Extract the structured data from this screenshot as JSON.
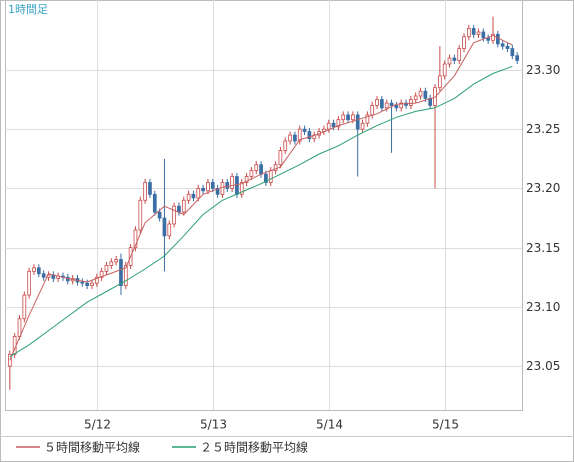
{
  "chart_data": {
    "type": "candlestick",
    "title": "1時間足",
    "xlim": [
      -1,
      106
    ],
    "ylim": [
      23.013,
      23.359
    ],
    "xticks": [
      {
        "value": 18,
        "label": "5/12"
      },
      {
        "value": 42,
        "label": "5/13"
      },
      {
        "value": 66,
        "label": "5/14"
      },
      {
        "value": 90,
        "label": "5/15"
      }
    ],
    "yticks": [
      23.05,
      {
        "value": 23.1,
        "label": "23.10"
      },
      23.15,
      {
        "value": 23.2,
        "label": "23.20"
      },
      23.25,
      {
        "value": 23.3,
        "label": "23.30"
      }
    ],
    "grid": true,
    "up_color": "#c84a4a",
    "down_color": "#3a6ea5",
    "ohlc": [
      [
        23.05,
        23.063,
        23.03,
        23.06
      ],
      [
        23.06,
        23.078,
        23.057,
        23.075
      ],
      [
        23.075,
        23.093,
        23.072,
        23.09
      ],
      [
        23.09,
        23.113,
        23.087,
        23.11
      ],
      [
        23.11,
        23.133,
        23.107,
        23.13
      ],
      [
        23.13,
        23.136,
        23.127,
        23.133
      ],
      [
        23.133,
        23.136,
        23.125,
        23.128
      ],
      [
        23.128,
        23.131,
        23.122,
        23.125
      ],
      [
        23.125,
        23.13,
        23.122,
        23.127
      ],
      [
        23.127,
        23.13,
        23.121,
        23.124
      ],
      [
        23.124,
        23.129,
        23.121,
        23.126
      ],
      [
        23.126,
        23.129,
        23.122,
        23.125
      ],
      [
        23.125,
        23.128,
        23.119,
        23.122
      ],
      [
        23.122,
        23.127,
        23.119,
        23.124
      ],
      [
        23.124,
        23.127,
        23.118,
        23.121
      ],
      [
        23.121,
        23.124,
        23.117,
        23.12
      ],
      [
        23.12,
        23.123,
        23.115,
        23.118
      ],
      [
        23.118,
        23.123,
        23.115,
        23.12
      ],
      [
        23.12,
        23.128,
        23.117,
        23.125
      ],
      [
        23.125,
        23.133,
        23.122,
        23.13
      ],
      [
        23.13,
        23.138,
        23.127,
        23.135
      ],
      [
        23.135,
        23.141,
        23.132,
        23.138
      ],
      [
        23.138,
        23.143,
        23.135,
        23.14
      ],
      [
        23.14,
        23.145,
        23.11,
        23.118
      ],
      [
        23.118,
        23.138,
        23.115,
        23.135
      ],
      [
        23.135,
        23.153,
        23.132,
        23.15
      ],
      [
        23.15,
        23.168,
        23.147,
        23.165
      ],
      [
        23.165,
        23.193,
        23.162,
        23.19
      ],
      [
        23.19,
        23.208,
        23.187,
        23.205
      ],
      [
        23.205,
        23.208,
        23.192,
        23.195
      ],
      [
        23.195,
        23.198,
        23.177,
        23.18
      ],
      [
        23.18,
        23.183,
        23.172,
        23.175
      ],
      [
        23.175,
        23.225,
        23.13,
        23.16
      ],
      [
        23.16,
        23.173,
        23.157,
        23.17
      ],
      [
        23.17,
        23.188,
        23.167,
        23.185
      ],
      [
        23.185,
        23.188,
        23.177,
        23.18
      ],
      [
        23.18,
        23.193,
        23.177,
        23.19
      ],
      [
        23.19,
        23.198,
        23.187,
        23.195
      ],
      [
        23.195,
        23.198,
        23.189,
        23.192
      ],
      [
        23.192,
        23.203,
        23.189,
        23.2
      ],
      [
        23.2,
        23.203,
        23.195,
        23.198
      ],
      [
        23.198,
        23.208,
        23.195,
        23.205
      ],
      [
        23.205,
        23.208,
        23.197,
        23.2
      ],
      [
        23.2,
        23.203,
        23.192,
        23.195
      ],
      [
        23.195,
        23.208,
        23.192,
        23.205
      ],
      [
        23.205,
        23.208,
        23.197,
        23.2
      ],
      [
        23.2,
        23.213,
        23.197,
        23.21
      ],
      [
        23.21,
        23.213,
        23.192,
        23.195
      ],
      [
        23.195,
        23.208,
        23.192,
        23.205
      ],
      [
        23.205,
        23.213,
        23.202,
        23.21
      ],
      [
        23.21,
        23.218,
        23.207,
        23.215
      ],
      [
        23.215,
        23.223,
        23.212,
        23.22
      ],
      [
        23.22,
        23.223,
        23.209,
        23.212
      ],
      [
        23.212,
        23.215,
        23.202,
        23.205
      ],
      [
        23.205,
        23.218,
        23.202,
        23.215
      ],
      [
        23.215,
        23.223,
        23.212,
        23.22
      ],
      [
        23.22,
        23.235,
        23.217,
        23.232
      ],
      [
        23.232,
        23.243,
        23.229,
        23.24
      ],
      [
        23.24,
        23.248,
        23.237,
        23.245
      ],
      [
        23.245,
        23.248,
        23.237,
        23.24
      ],
      [
        23.24,
        23.253,
        23.237,
        23.25
      ],
      [
        23.25,
        23.253,
        23.245,
        23.248
      ],
      [
        23.248,
        23.251,
        23.239,
        23.242
      ],
      [
        23.242,
        23.248,
        23.239,
        23.245
      ],
      [
        23.245,
        23.251,
        23.242,
        23.248
      ],
      [
        23.248,
        23.253,
        23.245,
        23.25
      ],
      [
        23.25,
        23.258,
        23.247,
        23.255
      ],
      [
        23.255,
        23.258,
        23.249,
        23.252
      ],
      [
        23.252,
        23.261,
        23.249,
        23.258
      ],
      [
        23.258,
        23.265,
        23.255,
        23.262
      ],
      [
        23.262,
        23.265,
        23.255,
        23.258
      ],
      [
        23.258,
        23.265,
        23.255,
        23.262
      ],
      [
        23.262,
        23.265,
        23.21,
        23.25
      ],
      [
        23.25,
        23.258,
        23.247,
        23.255
      ],
      [
        23.255,
        23.265,
        23.252,
        23.262
      ],
      [
        23.262,
        23.273,
        23.259,
        23.27
      ],
      [
        23.27,
        23.278,
        23.267,
        23.275
      ],
      [
        23.275,
        23.278,
        23.265,
        23.268
      ],
      [
        23.268,
        23.275,
        23.265,
        23.272
      ],
      [
        23.272,
        23.275,
        23.23,
        23.27
      ],
      [
        23.27,
        23.273,
        23.265,
        23.268
      ],
      [
        23.268,
        23.275,
        23.265,
        23.272
      ],
      [
        23.272,
        23.275,
        23.267,
        23.27
      ],
      [
        23.27,
        23.278,
        23.267,
        23.275
      ],
      [
        23.275,
        23.281,
        23.272,
        23.278
      ],
      [
        23.278,
        23.285,
        23.275,
        23.282
      ],
      [
        23.282,
        23.285,
        23.273,
        23.276
      ],
      [
        23.276,
        23.279,
        23.267,
        23.27
      ],
      [
        23.27,
        23.288,
        23.2,
        23.285
      ],
      [
        23.285,
        23.32,
        23.282,
        23.295
      ],
      [
        23.295,
        23.308,
        23.292,
        23.305
      ],
      [
        23.305,
        23.313,
        23.302,
        23.31
      ],
      [
        23.31,
        23.313,
        23.305,
        23.308
      ],
      [
        23.308,
        23.321,
        23.305,
        23.318
      ],
      [
        23.318,
        23.331,
        23.315,
        23.328
      ],
      [
        23.328,
        23.338,
        23.325,
        23.335
      ],
      [
        23.335,
        23.338,
        23.327,
        23.33
      ],
      [
        23.33,
        23.335,
        23.327,
        23.332
      ],
      [
        23.332,
        23.335,
        23.324,
        23.327
      ],
      [
        23.327,
        23.33,
        23.322,
        23.325
      ],
      [
        23.325,
        23.345,
        23.322,
        23.33
      ],
      [
        23.33,
        23.333,
        23.319,
        23.322
      ],
      [
        23.322,
        23.325,
        23.317,
        23.32
      ],
      [
        23.32,
        23.323,
        23.315,
        23.318
      ],
      [
        23.318,
        23.321,
        23.309,
        23.312
      ],
      [
        23.312,
        23.315,
        23.305,
        23.308
      ]
    ],
    "series": [
      {
        "name": "５時間移動平均線",
        "color": "#c86060",
        "x": [
          0,
          4,
          8,
          12,
          16,
          20,
          24,
          28,
          32,
          36,
          40,
          44,
          48,
          52,
          56,
          60,
          64,
          68,
          72,
          76,
          80,
          84,
          88,
          92,
          96,
          100,
          104
        ],
        "values": [
          23.055,
          23.093,
          23.128,
          23.124,
          23.121,
          23.127,
          23.133,
          23.171,
          23.185,
          23.178,
          23.195,
          23.201,
          23.204,
          23.212,
          23.218,
          23.241,
          23.246,
          23.253,
          23.258,
          23.263,
          23.271,
          23.272,
          23.277,
          23.295,
          23.323,
          23.329,
          23.321
        ]
      },
      {
        "name": "２５時間移動平均線",
        "color": "#2aa070",
        "x": [
          0,
          4,
          8,
          12,
          16,
          20,
          24,
          28,
          32,
          36,
          40,
          44,
          48,
          52,
          56,
          60,
          64,
          68,
          72,
          76,
          80,
          84,
          88,
          92,
          96,
          100,
          104
        ],
        "values": [
          23.058,
          23.068,
          23.08,
          23.092,
          23.104,
          23.113,
          23.122,
          23.132,
          23.143,
          23.16,
          23.178,
          23.19,
          23.197,
          23.204,
          23.212,
          23.22,
          23.229,
          23.236,
          23.245,
          23.253,
          23.26,
          23.265,
          23.268,
          23.276,
          23.288,
          23.297,
          23.303
        ]
      }
    ]
  }
}
